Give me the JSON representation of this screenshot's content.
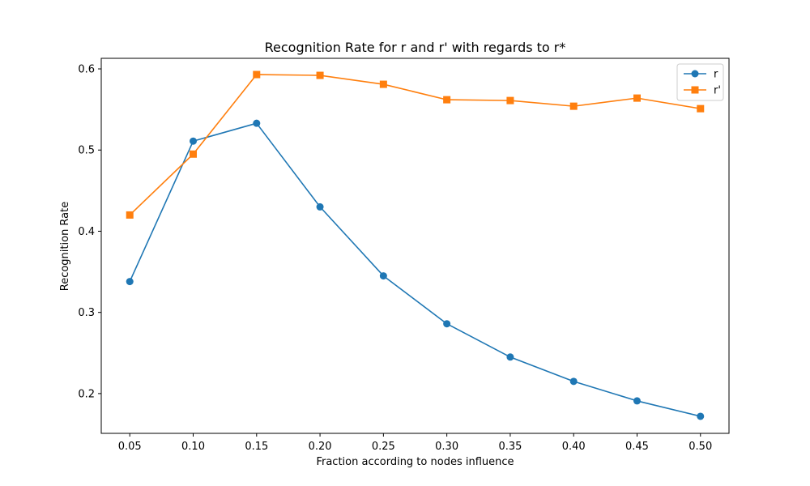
{
  "chart_data": {
    "type": "line",
    "title": "Recognition Rate for r and r' with regards to r*",
    "xlabel": "Fraction according to nodes influence",
    "ylabel": "Recognition Rate",
    "x": [
      0.05,
      0.1,
      0.15,
      0.2,
      0.25,
      0.3,
      0.35,
      0.4,
      0.45,
      0.5
    ],
    "x_tick_labels": [
      "0.05",
      "0.10",
      "0.15",
      "0.20",
      "0.25",
      "0.30",
      "0.35",
      "0.40",
      "0.45",
      "0.50"
    ],
    "y_ticks": [
      0.2,
      0.3,
      0.4,
      0.5,
      0.6
    ],
    "y_tick_labels": [
      "0.2",
      "0.3",
      "0.4",
      "0.5",
      "0.6"
    ],
    "xlim": [
      0.0275,
      0.5225
    ],
    "ylim": [
      0.151,
      0.613
    ],
    "grid": false,
    "legend_position": "top-right",
    "series": [
      {
        "name": "r",
        "marker": "circle",
        "color": "#1f77b4",
        "values": [
          0.338,
          0.511,
          0.533,
          0.43,
          0.345,
          0.286,
          0.245,
          0.215,
          0.191,
          0.172
        ]
      },
      {
        "name": "r'",
        "marker": "square",
        "color": "#ff7f0e",
        "values": [
          0.42,
          0.495,
          0.593,
          0.592,
          0.581,
          0.562,
          0.561,
          0.554,
          0.564,
          0.551
        ]
      }
    ]
  }
}
